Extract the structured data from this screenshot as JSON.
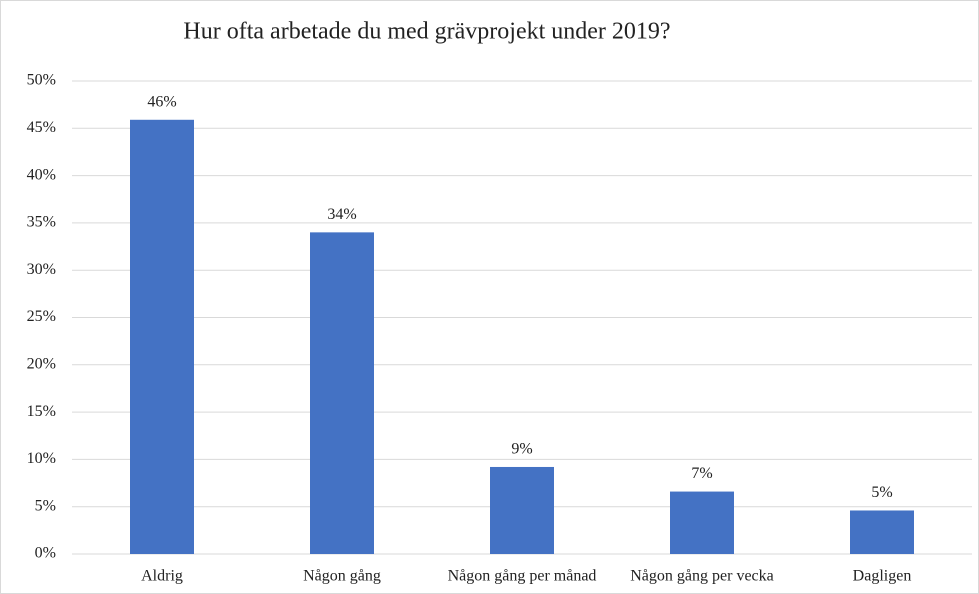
{
  "chart_data": {
    "type": "bar",
    "title": "Hur ofta arbetade du med grävprojekt under 2019?",
    "categories": [
      "Aldrig",
      "Någon gång",
      "Någon gång per månad",
      "Någon gång per vecka",
      "Dagligen"
    ],
    "values": [
      45.9,
      34,
      9.2,
      6.6,
      4.6
    ],
    "value_labels": [
      "46%",
      "34%",
      "9%",
      "7%",
      "5%"
    ],
    "color": "#4472c4",
    "ylim": [
      0,
      50
    ],
    "yticks": [
      {
        "value": 0,
        "label": "0%"
      },
      {
        "value": 5,
        "label": "5%"
      },
      {
        "value": 10,
        "label": "10%"
      },
      {
        "value": 15,
        "label": "15%"
      },
      {
        "value": 20,
        "label": "20%"
      },
      {
        "value": 25,
        "label": "25%"
      },
      {
        "value": 30,
        "label": "30%"
      },
      {
        "value": 35,
        "label": "35%"
      },
      {
        "value": 40,
        "label": "40%"
      },
      {
        "value": 45,
        "label": "45%"
      },
      {
        "value": 50,
        "label": "50%"
      }
    ],
    "grid": true
  }
}
